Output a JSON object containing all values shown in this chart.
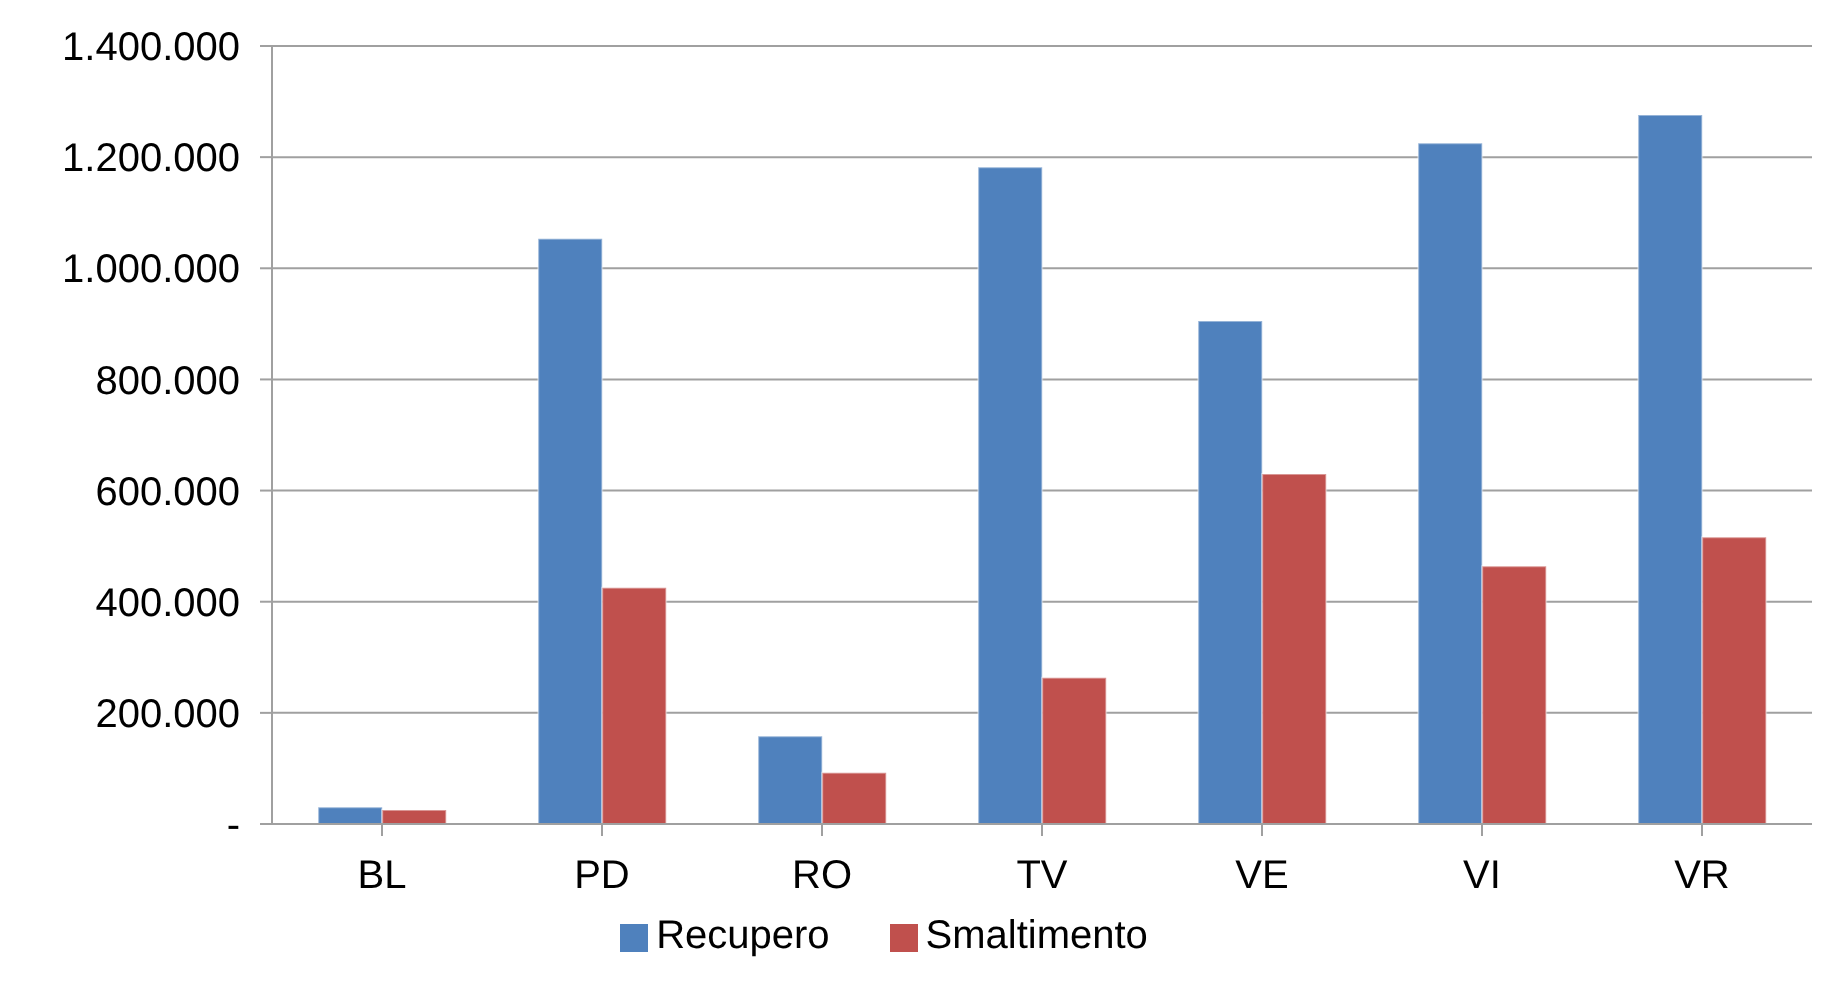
{
  "chart_data": {
    "type": "bar",
    "categories": [
      "BL",
      "PD",
      "RO",
      "TV",
      "VE",
      "VI",
      "VR"
    ],
    "series": [
      {
        "name": "Recupero",
        "color": "#4f81bd",
        "values": [
          30000,
          1053000,
          158000,
          1182000,
          905000,
          1225000,
          1276000
        ]
      },
      {
        "name": "Smaltimento",
        "color": "#c0504d",
        "values": [
          25000,
          425000,
          92000,
          263000,
          630000,
          464000,
          516000
        ]
      }
    ],
    "ylim": [
      0,
      1400000
    ],
    "yticks": [
      {
        "value": 0,
        "label": "-"
      },
      {
        "value": 200000,
        "label": "200.000"
      },
      {
        "value": 400000,
        "label": "400.000"
      },
      {
        "value": 600000,
        "label": "600.000"
      },
      {
        "value": 800000,
        "label": "800.000"
      },
      {
        "value": 1000000,
        "label": "1.000.000"
      },
      {
        "value": 1200000,
        "label": "1.200.000"
      },
      {
        "value": 1400000,
        "label": "1.400.000"
      }
    ],
    "grid": "y",
    "legend": "bottom"
  }
}
